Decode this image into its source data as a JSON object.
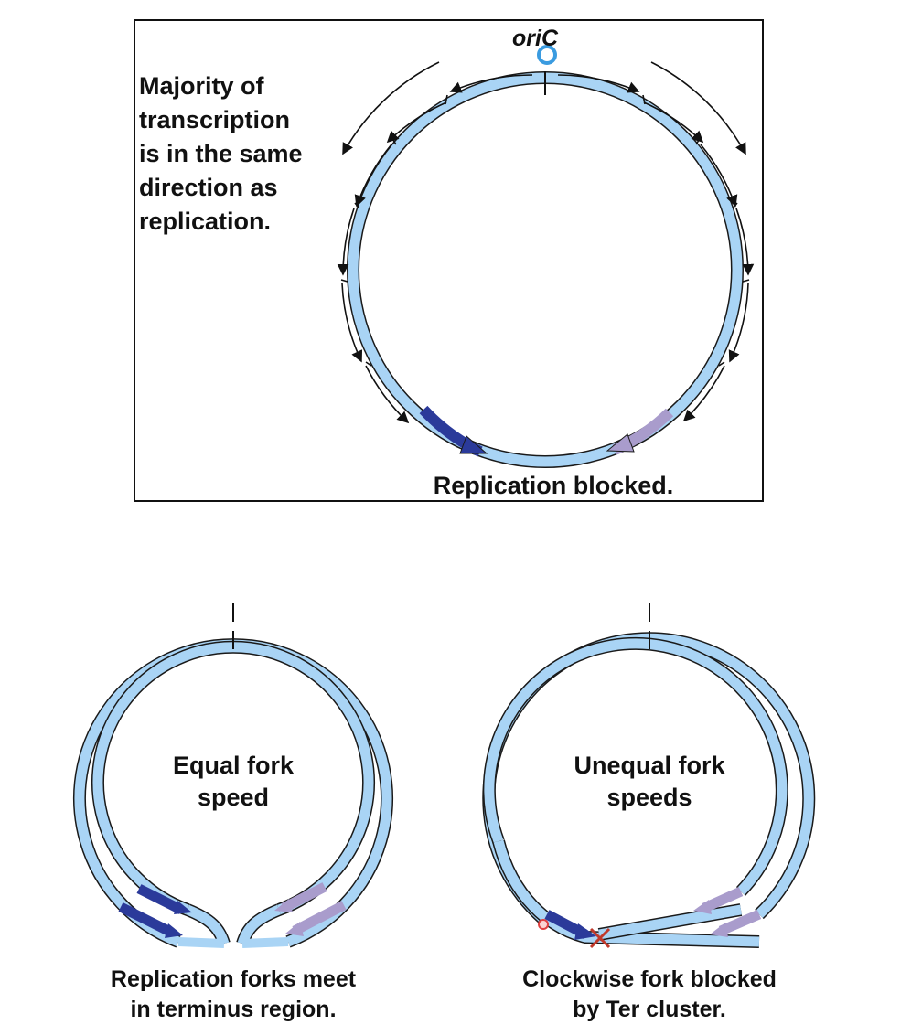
{
  "top_panel": {
    "origin_label": "oriC",
    "note_lines": [
      "Majority of",
      "transcription",
      "is in the same",
      "direction as",
      "replication."
    ],
    "caption": "Replication blocked."
  },
  "left_panel": {
    "center_lines": [
      "Equal fork",
      "speed"
    ],
    "caption_lines": [
      "Replication forks meet",
      "in terminus region."
    ]
  },
  "right_panel": {
    "center_lines": [
      "Unequal fork",
      "speeds"
    ],
    "caption_lines": [
      "Clockwise fork blocked",
      "by Ter cluster."
    ]
  },
  "colors": {
    "dna_fill": "#a9d4f5",
    "dna_outline": "#1a1a1a",
    "clockwise_fork": "#2b3a9a",
    "counterclockwise_fork": "#a99ccc",
    "origin_ring": "#3a9be0",
    "block_mark": "#c0392b"
  }
}
